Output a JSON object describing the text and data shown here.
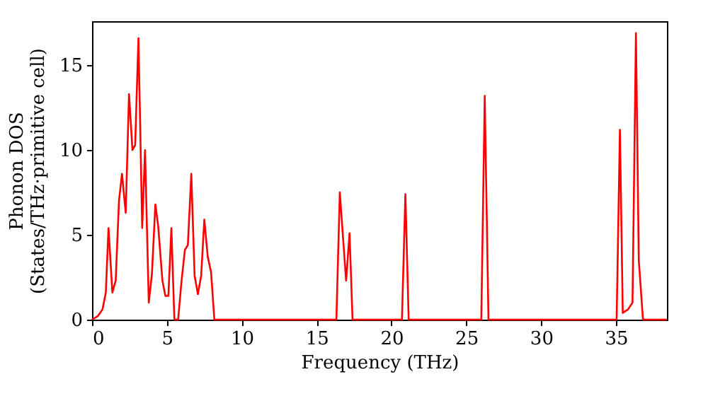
{
  "chart_data": {
    "type": "line",
    "xlabel": "Frequency (THz)",
    "ylabel": "Phonon DOS\n(States/THz·primitive cell)",
    "x": [
      0,
      0.38,
      0.7,
      0.92,
      1.1,
      1.36,
      1.58,
      1.8,
      2.0,
      2.25,
      2.47,
      2.7,
      2.88,
      3.1,
      3.35,
      3.54,
      3.79,
      4.0,
      4.23,
      4.42,
      4.7,
      4.9,
      5.1,
      5.3,
      5.5,
      5.75,
      5.97,
      6.2,
      6.4,
      6.63,
      6.85,
      7.07,
      7.29,
      7.5,
      7.73,
      7.95,
      8.17,
      16.32,
      16.55,
      16.97,
      17.2,
      17.4,
      20.7,
      20.93,
      21.15,
      26.0,
      26.23,
      26.48,
      35.04,
      35.26,
      35.45,
      35.8,
      36.1,
      36.33,
      36.52,
      36.8,
      38.4
    ],
    "series": [
      {
        "color": "#ff0000",
        "values": [
          0,
          0.2,
          0.6,
          1.6,
          5.4,
          1.6,
          2.3,
          7.0,
          8.6,
          6.3,
          13.3,
          10.0,
          10.3,
          16.6,
          5.4,
          10.0,
          1.0,
          2.7,
          6.8,
          5.5,
          2.3,
          1.4,
          1.4,
          5.4,
          0,
          0,
          2.2,
          4.1,
          4.4,
          8.6,
          2.6,
          1.5,
          2.6,
          5.9,
          3.7,
          2.8,
          0,
          0,
          7.5,
          2.3,
          5.1,
          0,
          0,
          7.4,
          0,
          0,
          13.2,
          0,
          0,
          11.2,
          0.4,
          0.6,
          1.0,
          16.9,
          3.5,
          0,
          0
        ]
      }
    ],
    "xlim": [
      0,
      38.4
    ],
    "ylim": [
      0,
      17.6
    ],
    "xticks": [
      0,
      5,
      10,
      15,
      20,
      25,
      30,
      35
    ],
    "yticks": [
      0,
      5,
      10,
      15
    ],
    "grid": false,
    "marker": "none",
    "line_style": "solid"
  }
}
